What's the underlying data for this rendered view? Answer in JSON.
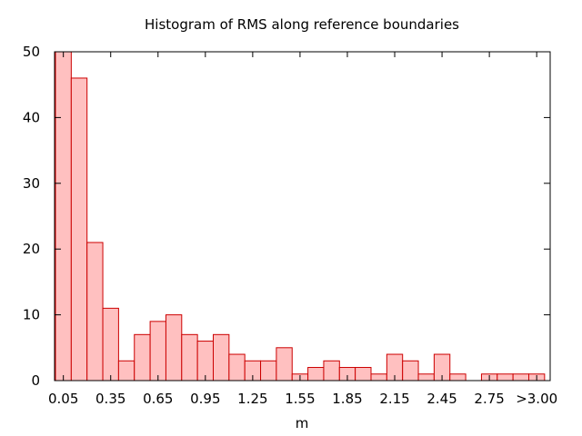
{
  "chart_data": {
    "type": "bar",
    "title": "Histogram of RMS along reference boundaries",
    "xlabel": "m",
    "ylabel": "",
    "ylim": [
      0,
      50
    ],
    "yticks": [
      0,
      10,
      20,
      30,
      40,
      50
    ],
    "xtick_labels": [
      "0.05",
      "0.35",
      "0.65",
      "0.95",
      "1.25",
      "1.55",
      "1.85",
      "2.15",
      "2.45",
      "2.75",
      ">3.00"
    ],
    "categories": [
      "0.05",
      "0.15",
      "0.25",
      "0.35",
      "0.45",
      "0.55",
      "0.65",
      "0.75",
      "0.85",
      "0.95",
      "1.05",
      "1.15",
      "1.25",
      "1.35",
      "1.45",
      "1.55",
      "1.65",
      "1.75",
      "1.85",
      "1.95",
      "2.05",
      "2.15",
      "2.25",
      "2.35",
      "2.45",
      "2.55",
      "2.65",
      "2.75",
      "2.85",
      "2.95",
      ">3.00"
    ],
    "values": [
      50,
      46,
      21,
      11,
      3,
      7,
      9,
      10,
      7,
      6,
      7,
      4,
      3,
      3,
      5,
      1,
      2,
      3,
      2,
      2,
      1,
      4,
      3,
      1,
      4,
      1,
      0,
      1,
      1,
      1,
      1
    ],
    "grid": false,
    "colors": {
      "bar_fill": "#ffc0c0",
      "bar_stroke": "#cc0000"
    }
  }
}
